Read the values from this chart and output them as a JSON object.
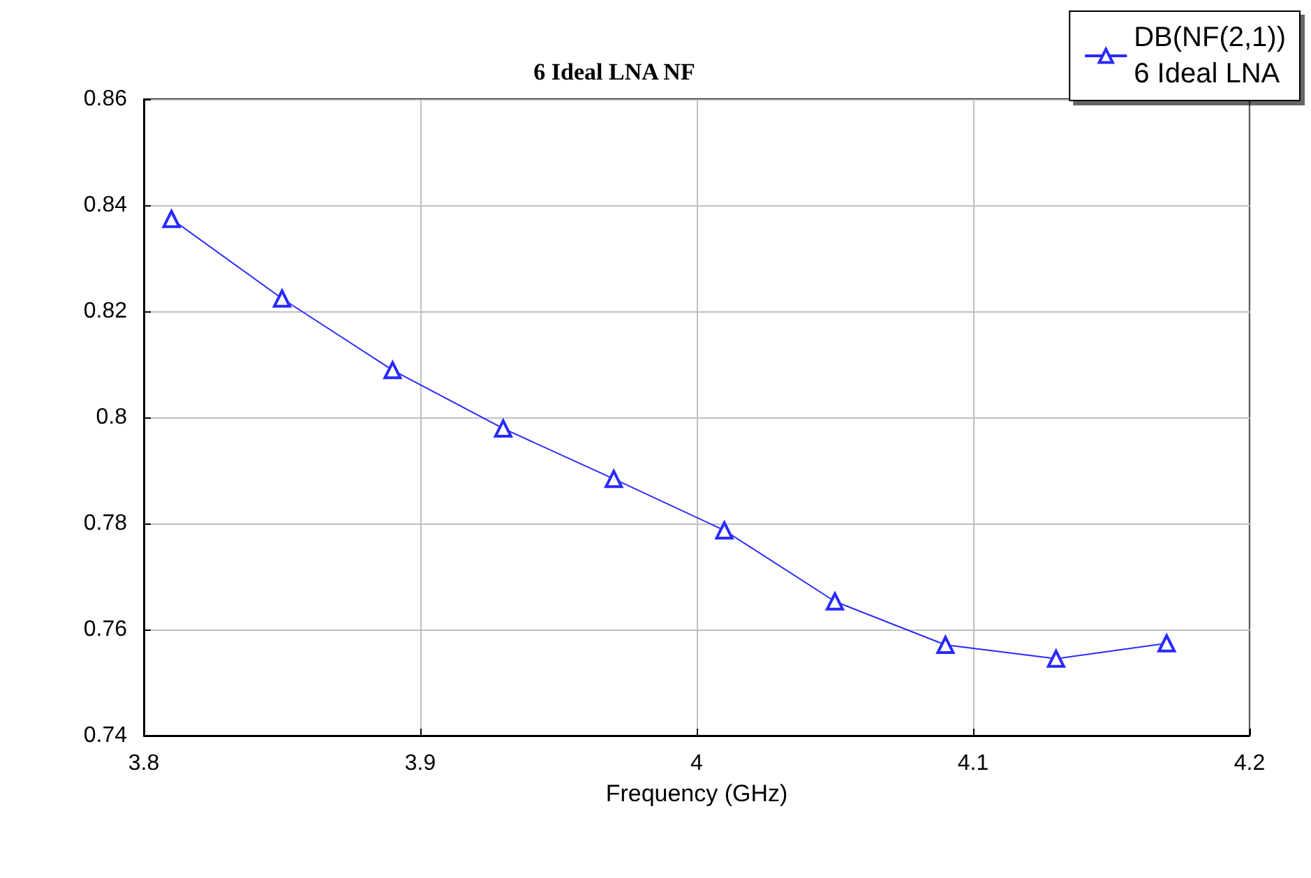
{
  "chart_data": {
    "type": "line",
    "title": "6 Ideal LNA NF",
    "xlabel": "Frequency (GHz)",
    "legend_title": "6 Ideal LNA",
    "series": [
      {
        "name": "DB(NF(2,1))",
        "color": "#2929ff",
        "x": [
          3.81,
          3.85,
          3.89,
          3.93,
          3.97,
          4.01,
          4.05,
          4.09,
          4.13,
          4.17
        ],
        "values": [
          0.8374,
          0.8224,
          0.8089,
          0.7979,
          0.7884,
          0.7787,
          0.7653,
          0.7571,
          0.7545,
          0.7574
        ]
      }
    ],
    "xlim": [
      3.8,
      4.2
    ],
    "xticks": [
      3.8,
      3.9,
      4,
      4.1,
      4.2
    ],
    "ylim": [
      0.74,
      0.86
    ],
    "yticks": [
      0.74,
      0.76,
      0.78,
      0.8,
      0.82,
      0.84,
      0.86
    ],
    "grid": true,
    "legend": "top right",
    "marker": "triangle",
    "line_style": "solid"
  }
}
